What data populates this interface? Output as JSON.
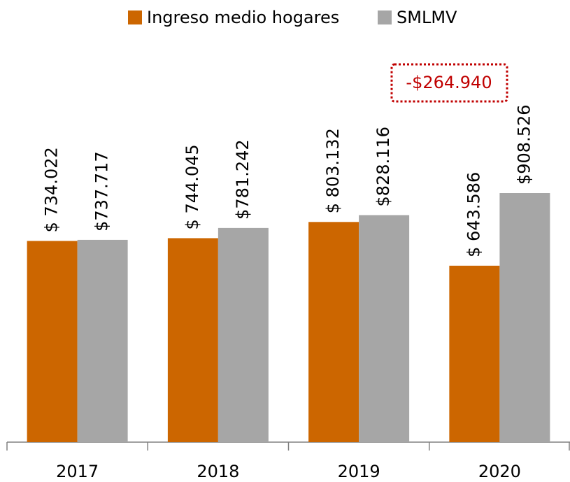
{
  "chart_data": {
    "type": "bar",
    "categories": [
      "2017",
      "2018",
      "2019",
      "2020"
    ],
    "series": [
      {
        "name": "Ingreso medio hogares",
        "color": "#cc6600",
        "values": [
          734022,
          744045,
          803132,
          643586
        ],
        "value_labels": [
          "$ 734.022",
          "$ 744.045",
          "$ 803.132",
          "$ 643.586"
        ]
      },
      {
        "name": "SMLMV",
        "color": "#a6a6a6",
        "values": [
          737717,
          781242,
          828116,
          908526
        ],
        "value_labels": [
          "$737.717",
          "$781.242",
          "$828.116",
          "$908.526"
        ]
      }
    ],
    "annotation": "-$264.940",
    "legend": "top"
  }
}
